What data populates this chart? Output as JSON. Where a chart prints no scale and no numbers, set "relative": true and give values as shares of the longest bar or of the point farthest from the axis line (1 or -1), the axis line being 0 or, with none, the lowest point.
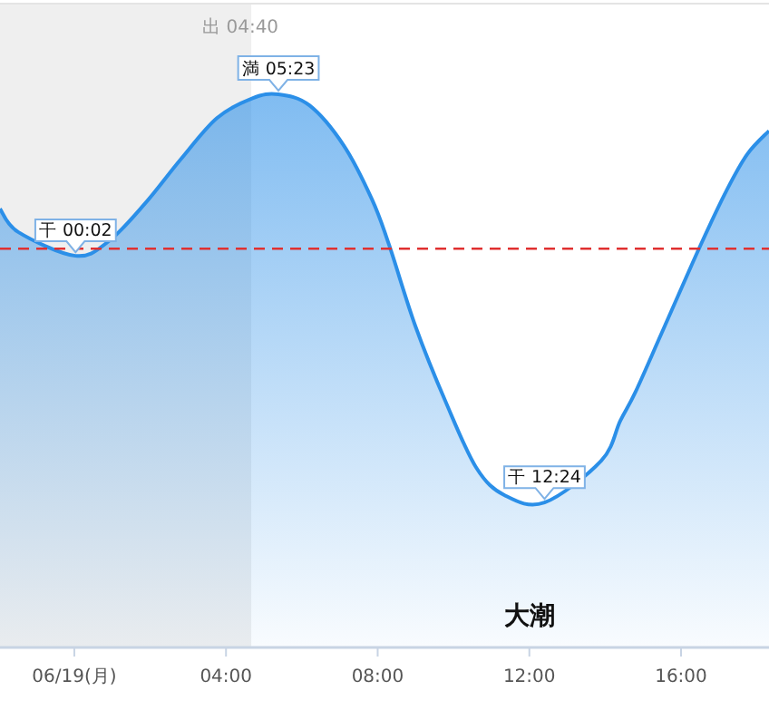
{
  "chart_data": {
    "type": "area",
    "relative": true,
    "marker": "none",
    "x": [
      -1.96,
      -1.48,
      0.03,
      0.9,
      1.87,
      2.8,
      3.76,
      4.7,
      5.38,
      6.2,
      7.1,
      7.85,
      8.3,
      9.0,
      9.8,
      10.6,
      11.35,
      12.4,
      13.9,
      14.4,
      14.8,
      15.5,
      16.5,
      17.2,
      17.75,
      18.32
    ],
    "series": [
      {
        "color": "#2b8fe8",
        "values": [
          0.793,
          0.751,
          0.708,
          0.734,
          0.803,
          0.882,
          0.957,
          0.993,
          1,
          0.98,
          0.908,
          0.81,
          0.728,
          0.58,
          0.443,
          0.325,
          0.275,
          0.262,
          0.338,
          0.41,
          0.462,
          0.57,
          0.725,
          0.826,
          0.892,
          0.934
        ]
      }
    ],
    "xlim": [
      -1.96,
      18.32
    ],
    "xticks": [
      {
        "value": 0,
        "label": "06/19(月)"
      },
      {
        "value": 4,
        "label": "04:00"
      },
      {
        "value": 8,
        "label": "08:00"
      },
      {
        "value": 12,
        "label": "12:00"
      },
      {
        "value": 16,
        "label": "16:00"
      }
    ],
    "annotations": [
      {
        "text": "干 00:02",
        "x": 0.033,
        "y": 0.708
      },
      {
        "text": "満 05:23",
        "x": 5.383,
        "y": 1
      },
      {
        "text": "干 12:24",
        "x": 12.4,
        "y": 0.262
      },
      "大潮"
    ],
    "bands": [
      {
        "axis": "x",
        "from": -1.96,
        "to": 4.667,
        "label": "出 04:40",
        "color": "#efefef"
      }
    ],
    "ref_lines": [
      {
        "axis": "y",
        "value": 0.721,
        "color": "#e03030",
        "line_style": "dashed"
      }
    ]
  }
}
